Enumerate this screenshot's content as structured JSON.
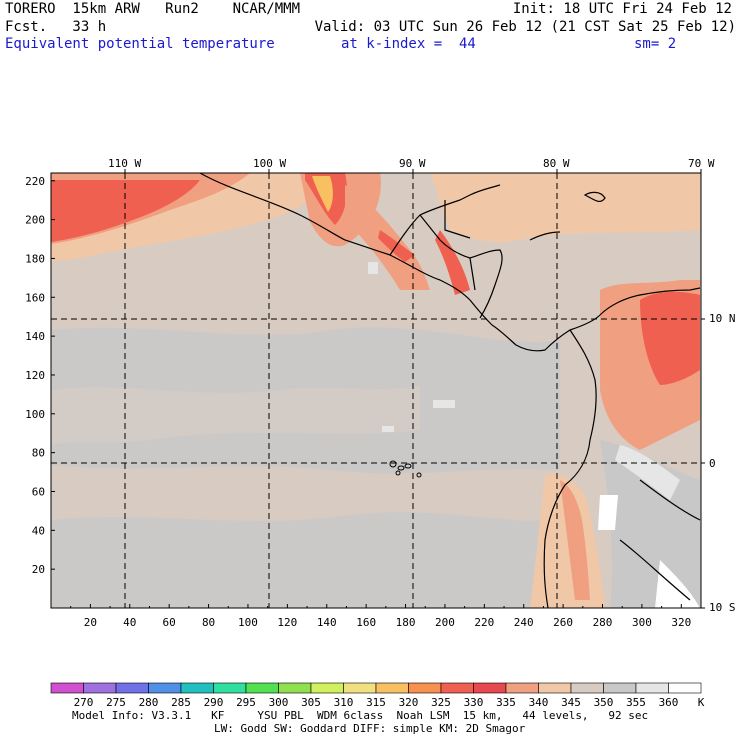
{
  "header": {
    "model": "TORERO  15km ARW   Run2    NCAR/MMM",
    "init": "Init: 18 UTC Fri 24 Feb 12",
    "fcst": "Fcst.   33 h",
    "valid": "Valid: 03 UTC Sun 26 Feb 12 (21 CST Sat 25 Feb 12)",
    "field": "Equivalent potential temperature",
    "level": "at k-index =  44",
    "smooth": "sm= 2"
  },
  "map": {
    "lon_labels": [
      "110 W",
      "100 W",
      "90 W",
      "80 W",
      "70 W"
    ],
    "lat_labels": [
      "10 N",
      "0",
      "10 S"
    ],
    "y_ticks": [
      "220",
      "200",
      "180",
      "160",
      "140",
      "120",
      "100",
      "80",
      "60",
      "40",
      "20"
    ],
    "x_ticks": [
      "20",
      "40",
      "60",
      "80",
      "100",
      "120",
      "140",
      "160",
      "180",
      "200",
      "220",
      "240",
      "260",
      "280",
      "300",
      "320"
    ],
    "x_range": [
      0,
      330
    ],
    "y_range": [
      0,
      224
    ]
  },
  "colorbar": {
    "unit": "K",
    "labels": [
      "270",
      "275",
      "280",
      "285",
      "290",
      "295",
      "300",
      "305",
      "310",
      "315",
      "320",
      "325",
      "330",
      "335",
      "340",
      "345",
      "350",
      "355",
      "360"
    ],
    "colors": [
      "#d050d0",
      "#a070e0",
      "#7070e8",
      "#5090e8",
      "#20c0c0",
      "#30e0a0",
      "#50e050",
      "#90e050",
      "#d0f060",
      "#f0e080",
      "#f8c060",
      "#f89050",
      "#f06050",
      "#e84850",
      "#f0a080",
      "#f0c8a8",
      "#d8cbc2",
      "#c8c8c8",
      "#e6e6e6",
      "#ffffff"
    ]
  },
  "footer": {
    "line1": "Model Info: V3.3.1   KF     YSU PBL  WDM 6class  Noah LSM  15 km,   44 levels,   92 sec",
    "line2": "LW: Godd SW: Goddard DIFF: simple KM: 2D Smagor"
  }
}
